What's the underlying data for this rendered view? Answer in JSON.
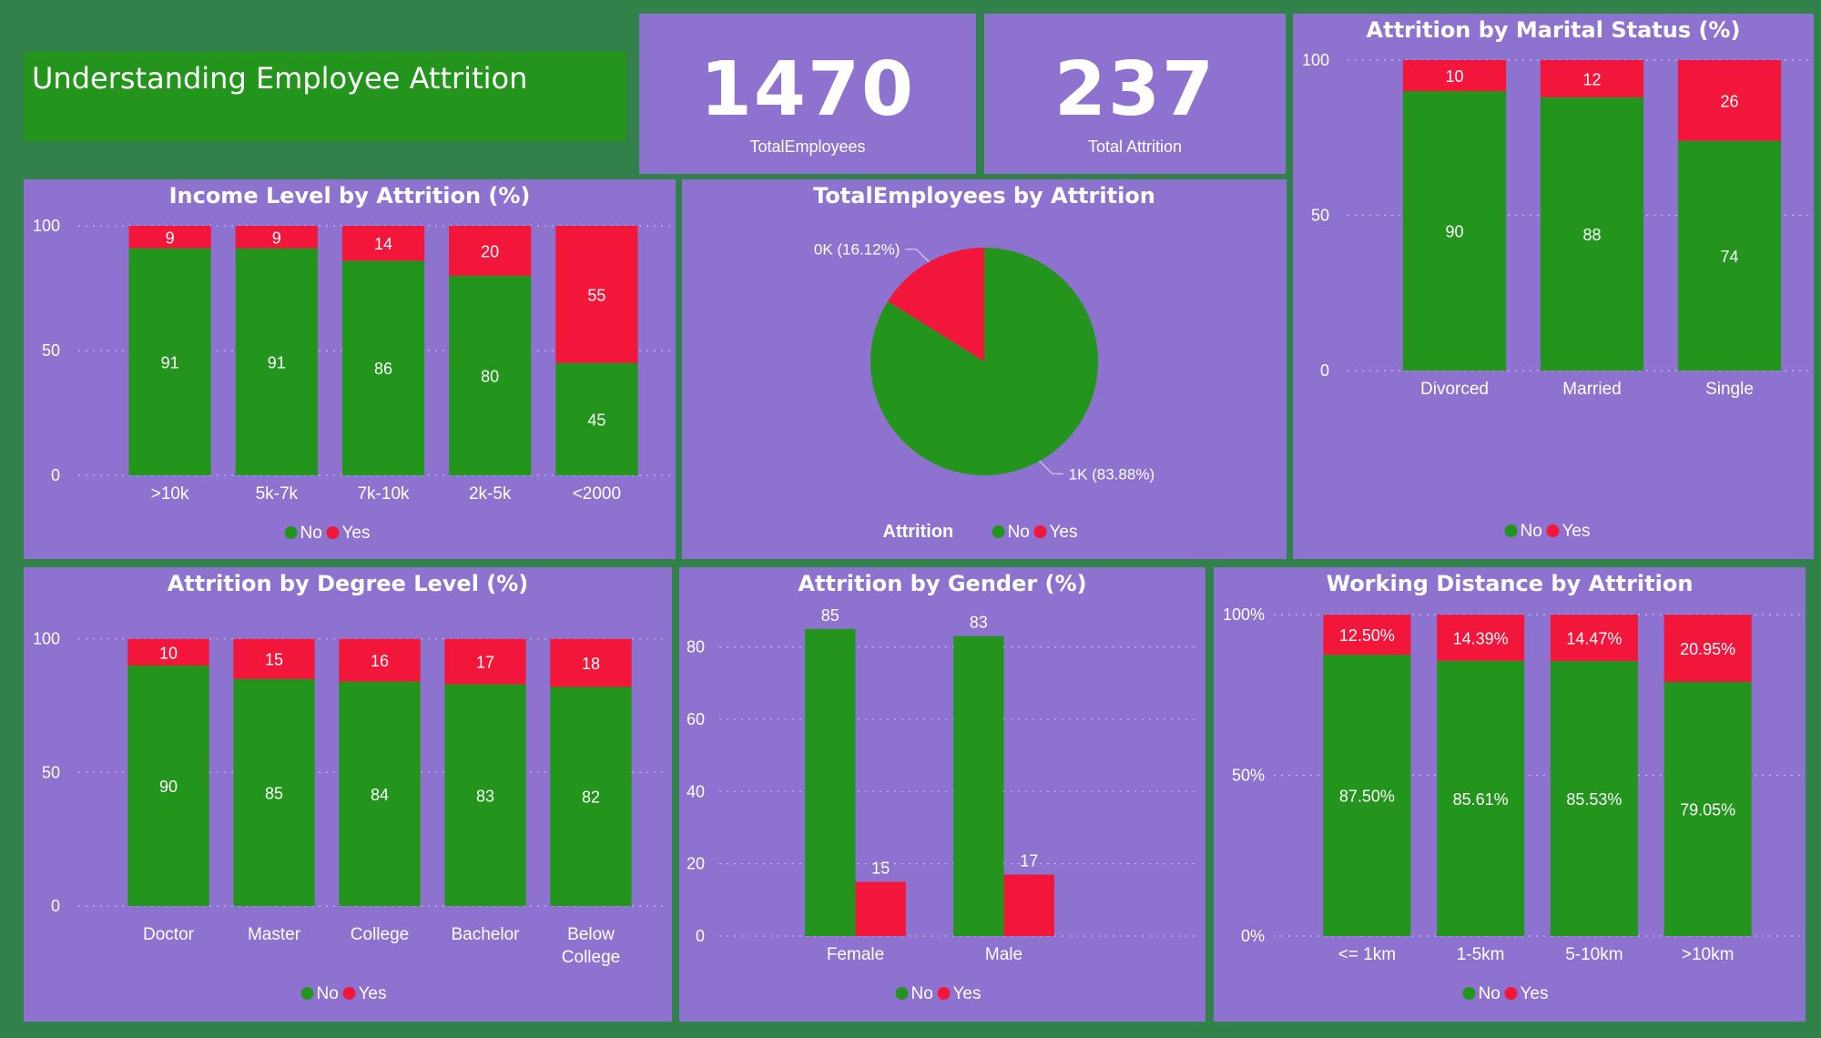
{
  "header": {
    "title": "Understanding Employee Attrition"
  },
  "cards": [
    {
      "value": "1470",
      "label": "TotalEmployees"
    },
    {
      "value": "237",
      "label": "Total Attrition"
    }
  ],
  "colors": {
    "no": "#23951c",
    "yes": "#f2163b",
    "panel": "#8e72cf",
    "background": "#32804a",
    "text": "#ffffff"
  },
  "legend": {
    "no": "No",
    "yes": "Yes"
  },
  "chart_data": [
    {
      "id": "income",
      "type": "bar",
      "stacked": true,
      "title": "Income Level by Attrition (%)",
      "categories": [
        ">10k",
        "5k-7k",
        "7k-10k",
        "2k-5k",
        "<2000"
      ],
      "series": [
        {
          "name": "No",
          "values": [
            91,
            91,
            86,
            80,
            45
          ],
          "labels": [
            "91",
            "91",
            "86",
            "80",
            "45"
          ]
        },
        {
          "name": "Yes",
          "values": [
            9,
            9,
            14,
            20,
            55
          ],
          "labels": [
            "9",
            "9",
            "14",
            "20",
            "55"
          ]
        }
      ],
      "ylim": [
        0,
        100
      ],
      "yticks": [
        "0",
        "50",
        "100"
      ],
      "grid": true,
      "legend_position": "bottom"
    },
    {
      "id": "pie",
      "type": "pie",
      "title": "TotalEmployees by Attrition",
      "legend_title": "Attrition",
      "slices": [
        {
          "name": "No",
          "value": 83.88,
          "label": "1K (83.88%)"
        },
        {
          "name": "Yes",
          "value": 16.12,
          "label": "0K (16.12%)"
        }
      ],
      "legend_position": "bottom"
    },
    {
      "id": "marital",
      "type": "bar",
      "stacked": true,
      "title": "Attrition by Marital Status (%)",
      "categories": [
        "Divorced",
        "Married",
        "Single"
      ],
      "series": [
        {
          "name": "No",
          "values": [
            90,
            88,
            74
          ],
          "labels": [
            "90",
            "88",
            "74"
          ]
        },
        {
          "name": "Yes",
          "values": [
            10,
            12,
            26
          ],
          "labels": [
            "10",
            "12",
            "26"
          ]
        }
      ],
      "ylim": [
        0,
        100
      ],
      "yticks": [
        "0",
        "50",
        "100"
      ],
      "grid": true,
      "legend_position": "bottom"
    },
    {
      "id": "degree",
      "type": "bar",
      "stacked": true,
      "title": "Attrition by Degree Level (%)",
      "categories": [
        "Doctor",
        "Master",
        "College",
        "Bachelor",
        "Below College"
      ],
      "series": [
        {
          "name": "No",
          "values": [
            90,
            85,
            84,
            83,
            82
          ],
          "labels": [
            "90",
            "85",
            "84",
            "83",
            "82"
          ]
        },
        {
          "name": "Yes",
          "values": [
            10,
            15,
            16,
            17,
            18
          ],
          "labels": [
            "10",
            "15",
            "16",
            "17",
            "18"
          ]
        }
      ],
      "ylim": [
        0,
        120
      ],
      "yticks": [
        "0",
        "50",
        "100"
      ],
      "grid": true,
      "legend_position": "bottom"
    },
    {
      "id": "gender",
      "type": "bar",
      "stacked": false,
      "title": "Attrition by Gender (%)",
      "categories": [
        "Female",
        "Male"
      ],
      "series": [
        {
          "name": "No",
          "values": [
            85,
            83
          ],
          "labels": [
            "85",
            "83"
          ]
        },
        {
          "name": "Yes",
          "values": [
            15,
            17
          ],
          "labels": [
            "15",
            "17"
          ]
        }
      ],
      "ylim": [
        0,
        92
      ],
      "yticks": [
        "0",
        "20",
        "40",
        "60",
        "80"
      ],
      "grid": true,
      "legend_position": "bottom"
    },
    {
      "id": "distance",
      "type": "bar",
      "stacked": true,
      "title": "Working Distance by Attrition",
      "categories": [
        "<= 1km",
        "1-5km",
        "5-10km",
        ">10km"
      ],
      "series": [
        {
          "name": "No",
          "values": [
            87.5,
            85.61,
            85.53,
            79.05
          ],
          "labels": [
            "87.50%",
            "85.61%",
            "85.53%",
            "79.05%"
          ]
        },
        {
          "name": "Yes",
          "values": [
            12.5,
            14.39,
            14.47,
            20.95
          ],
          "labels": [
            "12.50%",
            "14.39%",
            "14.47%",
            "20.95%"
          ]
        }
      ],
      "ylim": [
        0,
        100
      ],
      "yticks": [
        "0%",
        "50%",
        "100%"
      ],
      "grid": true,
      "legend_position": "bottom"
    }
  ]
}
